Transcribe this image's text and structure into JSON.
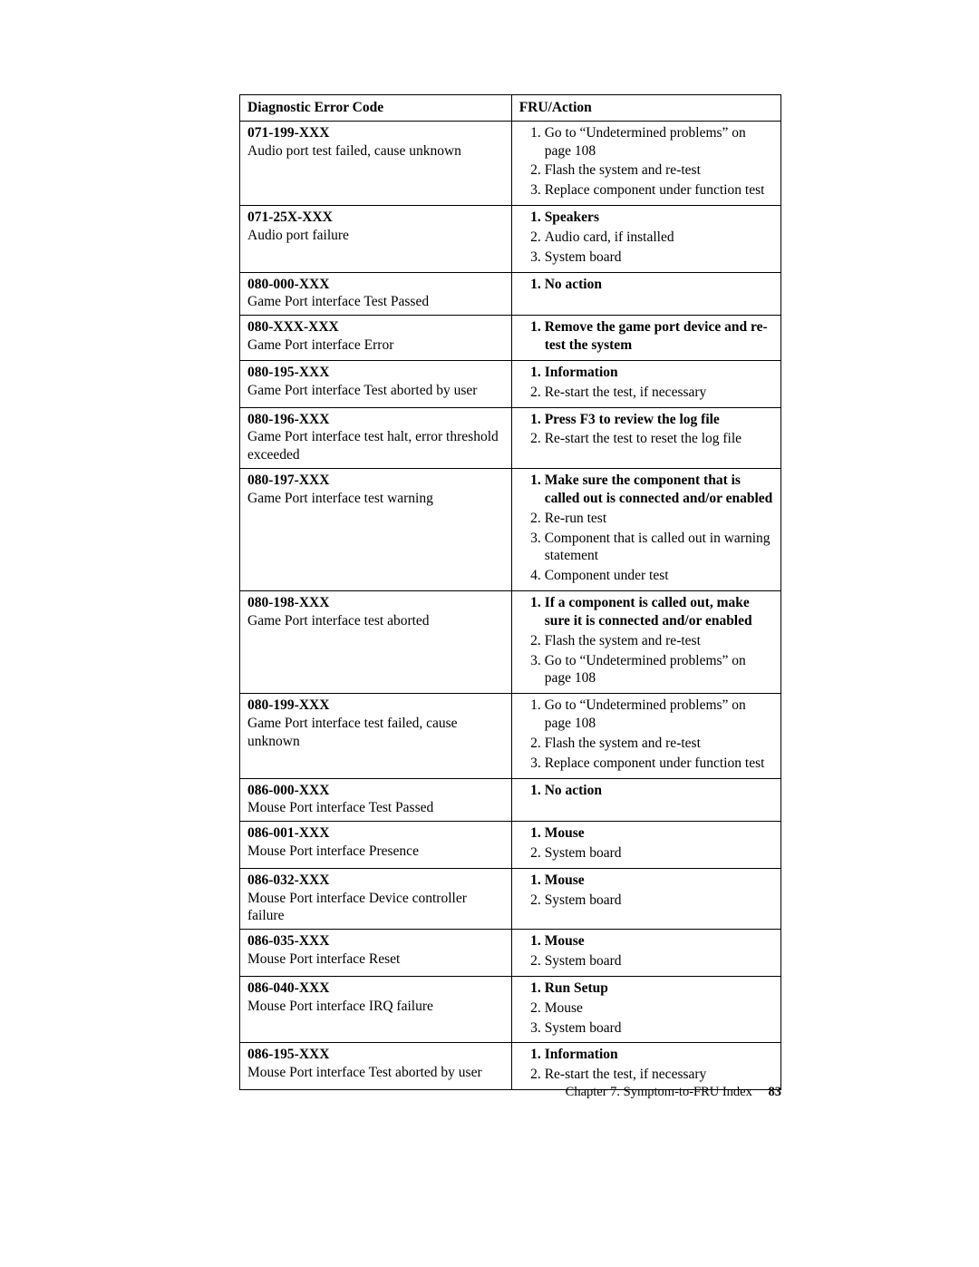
{
  "table": {
    "header_code": "Diagnostic Error Code",
    "header_action": "FRU/Action",
    "rows": [
      {
        "code": "071-199-XXX",
        "desc": "Audio port test failed, cause unknown",
        "actions": [
          {
            "text": "Go to “Undetermined problems” on page 108",
            "bold": false
          },
          {
            "text": "Flash the system and re-test",
            "bold": false
          },
          {
            "text": "Replace component under function test",
            "bold": false
          }
        ]
      },
      {
        "code": "071-25X-XXX",
        "desc": "Audio port failure",
        "actions": [
          {
            "text": "Speakers",
            "bold": true
          },
          {
            "text": "Audio card, if installed",
            "bold": false
          },
          {
            "text": "System board",
            "bold": false
          }
        ]
      },
      {
        "code": "080-000-XXX",
        "desc": "Game Port interface Test Passed",
        "actions": [
          {
            "text": "No action",
            "bold": true
          }
        ]
      },
      {
        "code": "080-XXX-XXX",
        "desc": "Game Port interface Error",
        "actions": [
          {
            "text": "Remove the game port device and re-test the system",
            "bold": true
          }
        ]
      },
      {
        "code": "080-195-XXX",
        "desc": "Game Port interface Test aborted by user",
        "actions": [
          {
            "text": "Information",
            "bold": true
          },
          {
            "text": "Re-start the test, if necessary",
            "bold": false
          }
        ]
      },
      {
        "code": "080-196-XXX",
        "desc": "Game Port interface test halt, error threshold exceeded",
        "actions": [
          {
            "text": "Press F3 to review the log file",
            "bold": true
          },
          {
            "text": "Re-start the test to reset the log file",
            "bold": false
          }
        ]
      },
      {
        "code": "080-197-XXX",
        "desc": "Game Port interface test warning",
        "actions": [
          {
            "text": "Make sure the component that is called out is connected and/or enabled",
            "bold": true
          },
          {
            "text": "Re-run test",
            "bold": false
          },
          {
            "text": "Component that is called out in warning statement",
            "bold": false
          },
          {
            "text": "Component under test",
            "bold": false
          }
        ]
      },
      {
        "code": "080-198-XXX",
        "desc": "Game Port interface test aborted",
        "actions": [
          {
            "text": "If a component is called out, make sure it is connected and/or enabled",
            "bold": true
          },
          {
            "text": "Flash the system and re-test",
            "bold": false
          },
          {
            "text": "Go to “Undetermined problems” on page 108",
            "bold": false
          }
        ]
      },
      {
        "code": "080-199-XXX",
        "desc": "Game Port interface test failed, cause unknown",
        "actions": [
          {
            "text": "Go to “Undetermined problems” on page 108",
            "bold": false
          },
          {
            "text": "Flash the system and re-test",
            "bold": false
          },
          {
            "text": "Replace component under function test",
            "bold": false
          }
        ]
      },
      {
        "code": "086-000-XXX",
        "desc": "Mouse Port interface Test Passed",
        "actions": [
          {
            "text": "No action",
            "bold": true
          }
        ]
      },
      {
        "code": "086-001-XXX",
        "desc": "Mouse Port interface Presence",
        "actions": [
          {
            "text": "Mouse",
            "bold": true
          },
          {
            "text": "System board",
            "bold": false
          }
        ]
      },
      {
        "code": "086-032-XXX",
        "desc": "Mouse Port interface Device controller failure",
        "actions": [
          {
            "text": "Mouse",
            "bold": true
          },
          {
            "text": "System board",
            "bold": false
          }
        ]
      },
      {
        "code": "086-035-XXX",
        "desc": "Mouse Port interface Reset",
        "actions": [
          {
            "text": "Mouse",
            "bold": true
          },
          {
            "text": "System board",
            "bold": false
          }
        ]
      },
      {
        "code": "086-040-XXX",
        "desc": "Mouse Port interface IRQ failure",
        "actions": [
          {
            "text": "Run Setup",
            "bold": true
          },
          {
            "text": "Mouse",
            "bold": false
          },
          {
            "text": "System board",
            "bold": false
          }
        ]
      },
      {
        "code": "086-195-XXX",
        "desc": "Mouse Port interface Test aborted by user",
        "actions": [
          {
            "text": "Information",
            "bold": true
          },
          {
            "text": "Re-start the test, if necessary",
            "bold": false
          }
        ]
      }
    ]
  },
  "footer": {
    "chapter": "Chapter 7. Symptom-to-FRU Index",
    "page": "83"
  }
}
